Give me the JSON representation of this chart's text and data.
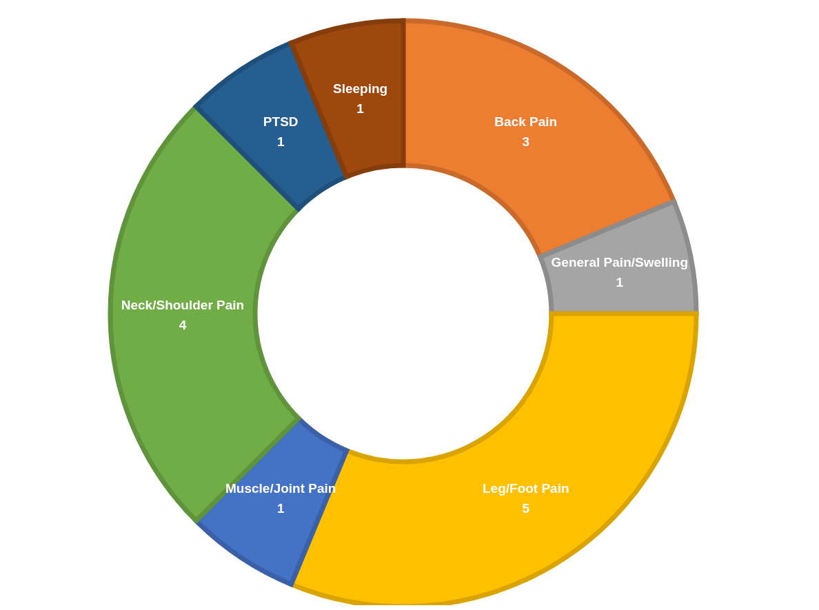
{
  "chart_data": {
    "type": "donut",
    "categories": [
      "Back Pain",
      "General Pain/Swelling",
      "Leg/Foot Pain",
      "Muscle/Joint Pain",
      "Neck/Shoulder Pain",
      "PTSD",
      "Sleeping"
    ],
    "values": [
      3,
      1,
      5,
      1,
      4,
      1,
      1
    ],
    "colors": [
      "#ed7d31",
      "#a5a5a5",
      "#ffc000",
      "#4472c4",
      "#70ad47",
      "#255e91",
      "#9e480e"
    ],
    "data_labels": true,
    "legend": false
  }
}
